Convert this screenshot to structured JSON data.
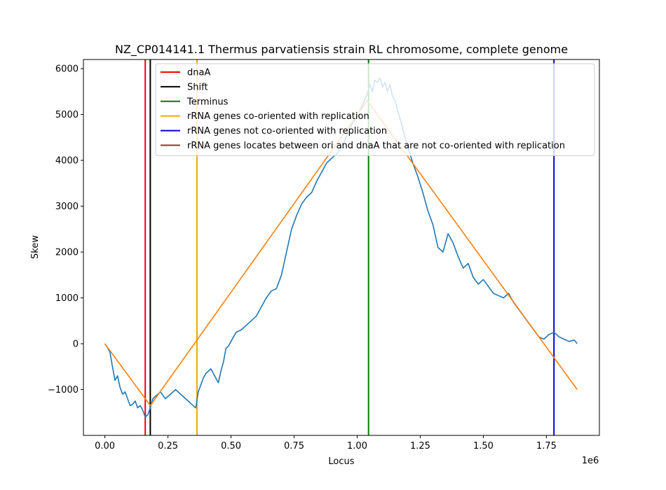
{
  "chart_data": {
    "type": "line",
    "title": "NZ_CP014141.1 Thermus parvatiensis strain RL chromosome, complete genome",
    "xlabel": "Locus",
    "ylabel": "Skew",
    "x_offset_label": "1e6",
    "xlim": [
      -85000,
      1960000
    ],
    "ylim": [
      -2000,
      6200
    ],
    "x_ticks": [
      0,
      250000,
      500000,
      750000,
      1000000,
      1250000,
      1500000,
      1750000
    ],
    "x_tick_labels": [
      "0.00",
      "0.25",
      "0.50",
      "0.75",
      "1.00",
      "1.25",
      "1.50",
      "1.75"
    ],
    "y_ticks": [
      -1000,
      0,
      1000,
      2000,
      3000,
      4000,
      5000,
      6000
    ],
    "y_tick_labels": [
      "−1000",
      "0",
      "1000",
      "2000",
      "3000",
      "4000",
      "5000",
      "6000"
    ],
    "grid": false,
    "legend_position": "top-right",
    "series": [
      {
        "kind": "line",
        "color": "#1f77b4",
        "x": [
          0,
          10000,
          20000,
          30000,
          40000,
          50000,
          60000,
          70000,
          80000,
          90000,
          100000,
          110000,
          120000,
          130000,
          140000,
          150000,
          160000,
          170000,
          180000,
          190000,
          200000,
          210000,
          220000,
          240000,
          260000,
          280000,
          300000,
          320000,
          340000,
          360000,
          370000,
          380000,
          390000,
          400000,
          420000,
          440000,
          450000,
          460000,
          470000,
          480000,
          490000,
          500000,
          520000,
          540000,
          560000,
          580000,
          600000,
          620000,
          640000,
          660000,
          680000,
          700000,
          720000,
          740000,
          760000,
          780000,
          800000,
          820000,
          840000,
          860000,
          880000,
          900000,
          920000,
          940000,
          960000,
          980000,
          1000000,
          1020000,
          1040000,
          1050000,
          1060000,
          1070000,
          1080000,
          1090000,
          1100000,
          1110000,
          1120000,
          1130000,
          1140000,
          1150000,
          1160000,
          1180000,
          1200000,
          1220000,
          1240000,
          1260000,
          1280000,
          1300000,
          1320000,
          1340000,
          1360000,
          1380000,
          1400000,
          1420000,
          1440000,
          1460000,
          1480000,
          1500000,
          1520000,
          1540000,
          1560000,
          1580000,
          1600000,
          1620000,
          1640000,
          1660000,
          1680000,
          1700000,
          1720000,
          1740000,
          1760000,
          1780000,
          1800000,
          1820000,
          1840000,
          1860000,
          1872000
        ],
        "y": [
          0,
          -80,
          -180,
          -500,
          -800,
          -700,
          -950,
          -1100,
          -1050,
          -1200,
          -1350,
          -1320,
          -1250,
          -1400,
          -1350,
          -1450,
          -1600,
          -1550,
          -1400,
          -1200,
          -1150,
          -1100,
          -1050,
          -1200,
          -1100,
          -1000,
          -1100,
          -1200,
          -1300,
          -1400,
          -1050,
          -900,
          -750,
          -650,
          -550,
          -750,
          -850,
          -600,
          -400,
          -100,
          -50,
          50,
          250,
          300,
          400,
          500,
          600,
          800,
          1000,
          1150,
          1200,
          1500,
          2000,
          2500,
          2800,
          3050,
          3200,
          3300,
          3550,
          3750,
          3950,
          4050,
          4150,
          4300,
          4550,
          4800,
          4950,
          5200,
          5450,
          5650,
          5500,
          5750,
          5700,
          5800,
          5600,
          5700,
          5500,
          5650,
          5400,
          5300,
          5100,
          4700,
          4300,
          3950,
          3650,
          3300,
          2900,
          2600,
          2100,
          2000,
          2400,
          2200,
          1900,
          1650,
          1750,
          1450,
          1300,
          1400,
          1250,
          1100,
          1050,
          1000,
          1100,
          900,
          750,
          600,
          450,
          300,
          150,
          100,
          200,
          250,
          150,
          100,
          50,
          80,
          0
        ],
        "style": "faded",
        "_comment": "ignored"
      },
      {
        "kind": "line",
        "color": "#ff7f0e",
        "x": [
          0,
          180000,
          1040000,
          1872000
        ],
        "y": [
          0,
          -1350,
          5300,
          -1000
        ]
      }
    ],
    "vertical_lines": [
      {
        "x": 160000,
        "color": "#ff0000"
      },
      {
        "x": 180000,
        "color": "#000000"
      },
      {
        "x": 365000,
        "color": "#ffa500"
      },
      {
        "x": 1045000,
        "color": "#008000"
      },
      {
        "x": 1780000,
        "color": "#0000cd"
      }
    ],
    "legend": [
      {
        "label": "dnaA",
        "color": "#ff0000"
      },
      {
        "label": "Shift",
        "color": "#000000"
      },
      {
        "label": "Terminus",
        "color": "#008000"
      },
      {
        "label": "rRNA genes co-oriented with replication",
        "color": "#ffa500"
      },
      {
        "label": "rRNA genes not co-oriented with replication",
        "color": "#0000cd"
      },
      {
        "label": "rRNA genes locates between ori and dnaA that are not co-oriented with replication",
        "color": "#a52a2a"
      }
    ]
  }
}
